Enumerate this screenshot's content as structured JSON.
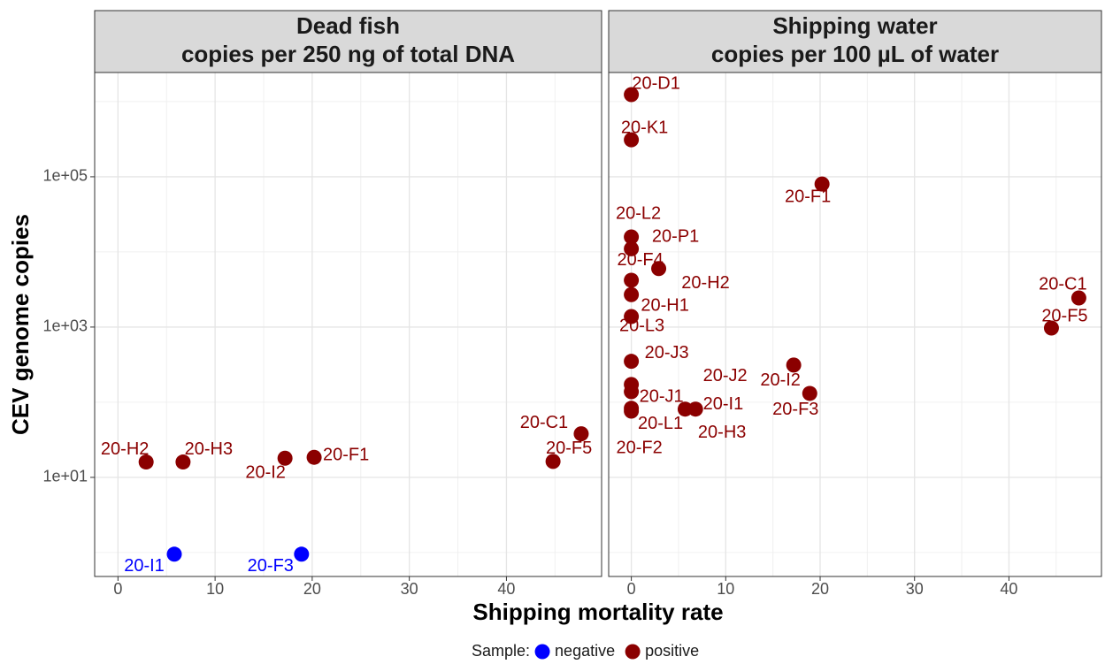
{
  "xlabel": "Shipping mortality rate",
  "ylabel": "CEV genome copies",
  "legend": {
    "title": "Sample:",
    "position": "bottom"
  },
  "chart_data": [
    {
      "type": "scatter",
      "title": "Dead fish",
      "subtitle": "copies per 250 ng of total DNA",
      "log_y": true,
      "grid": true,
      "xlim": [
        -2.4,
        49.8
      ],
      "xticks": [
        0,
        10,
        20,
        30,
        40
      ],
      "xminor": [
        5,
        15,
        25,
        35,
        45
      ],
      "ylim": [
        0.48,
        2440000
      ],
      "yticks": [
        {
          "value": 10,
          "label": "1e+01"
        },
        {
          "value": 1000,
          "label": "1e+03"
        },
        {
          "value": 100000,
          "label": "1e+05"
        }
      ],
      "yminor": [
        1,
        100,
        10000,
        1000000
      ],
      "series": [
        {
          "name": "negative",
          "color": "#0000ff",
          "x": [
            5.8,
            18.9
          ],
          "values": [
            0.95,
            0.95
          ],
          "labels": [
            "20-I1",
            "20-F3"
          ]
        },
        {
          "name": "positive",
          "color": "#8b0000",
          "x": [
            2.9,
            6.7,
            17.2,
            20.2,
            47.7,
            44.8
          ],
          "values": [
            16,
            16,
            18,
            18.5,
            38,
            16.3
          ],
          "labels": [
            "20-H2",
            "20-H3",
            "20-I2",
            "20-F1",
            "20-C1",
            "20-F5"
          ]
        }
      ]
    },
    {
      "type": "scatter",
      "title": "Shipping water",
      "subtitle": "copies per 100 µL of water",
      "log_y": true,
      "grid": true,
      "xlim": [
        -2.4,
        49.8
      ],
      "xticks": [
        0,
        10,
        20,
        30,
        40
      ],
      "xminor": [
        5,
        15,
        25,
        35,
        45
      ],
      "ylim": [
        0.48,
        2440000
      ],
      "yticks": [
        {
          "value": 10,
          "label": "1e+01"
        },
        {
          "value": 1000,
          "label": "1e+03"
        },
        {
          "value": 100000,
          "label": "1e+05"
        }
      ],
      "yminor": [
        1,
        100,
        10000,
        1000000
      ],
      "series": [
        {
          "name": "negative",
          "color": "#0000ff",
          "x": [],
          "values": [],
          "labels": []
        },
        {
          "name": "positive",
          "color": "#8b0000",
          "x": [
            0,
            0,
            20.2,
            0,
            0,
            0,
            2.9,
            0,
            0,
            47.4,
            44.5,
            0,
            17.2,
            18.9,
            0,
            0,
            0,
            0,
            5.7,
            6.8
          ],
          "values": [
            1240000,
            310000,
            80000,
            15800,
            11000,
            4200,
            6000,
            2700,
            1380,
            2440,
            970,
            350,
            312,
            131,
            172,
            138,
            83,
            76,
            81,
            81
          ],
          "labels": [
            "20-D1",
            "20-K1",
            "20-F1",
            "20-L2",
            "20-P1",
            "20-F4",
            "20-H2",
            "20-H1",
            "20-L3",
            "20-C1",
            "20-F5",
            "20-J3",
            "20-I2",
            "20-F3",
            "20-J2",
            "20-J1",
            "20-L1",
            "20-F2",
            "20-I1",
            "20-H3"
          ]
        }
      ]
    }
  ]
}
